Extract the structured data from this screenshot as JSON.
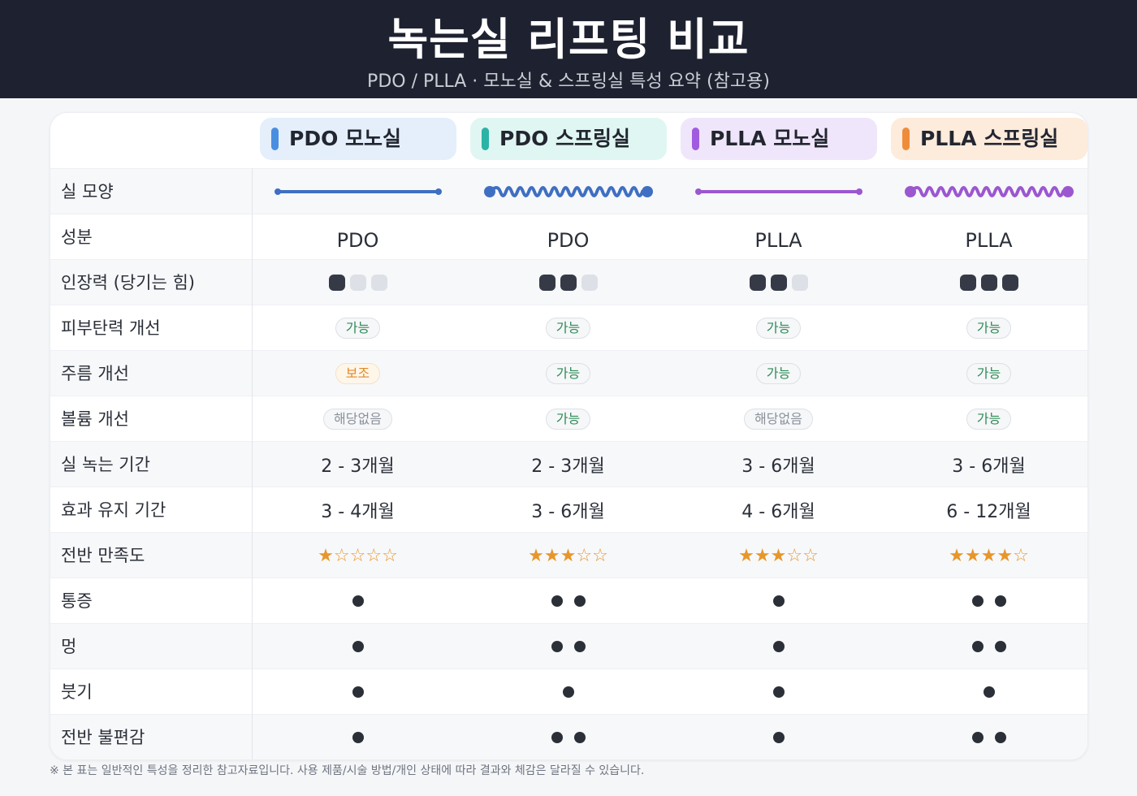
{
  "header": {
    "title": "녹는실 리프팅 비교",
    "subtitle": "PDO / PLLA · 모노실 & 스프링실 특성 요약 (참고용)"
  },
  "columns": [
    {
      "label": "PDO 모노실",
      "accent": "#4a8ee0",
      "bg": "#e4effb"
    },
    {
      "label": "PDO 스프링실",
      "accent": "#2bb3a6",
      "bg": "#e0f6f2"
    },
    {
      "label": "PLLA 모노실",
      "accent": "#a05be0",
      "bg": "#f0e6fb"
    },
    {
      "label": "PLLA 스프링실",
      "accent": "#ef8c3a",
      "bg": "#fdebdc"
    }
  ],
  "rows": {
    "shape": {
      "label": "실 모양",
      "colors": [
        "#3f6fc2",
        "#3f6fc2",
        "#9b57d0",
        "#9b57d0"
      ],
      "types": [
        "mono",
        "spring",
        "mono",
        "spring"
      ]
    },
    "ingredient": {
      "label": "성분",
      "values": [
        "PDO",
        "PDO",
        "PLLA",
        "PLLA"
      ]
    },
    "tension": {
      "label": "인장력 (당기는 힘)",
      "levels": [
        1,
        2,
        2,
        3
      ],
      "max": 3
    },
    "elasticity": {
      "label": "피부탄력 개선",
      "values": [
        "가능",
        "가능",
        "가능",
        "가능"
      ],
      "kinds": [
        "ok",
        "ok",
        "ok",
        "ok"
      ]
    },
    "wrinkle": {
      "label": "주름 개선",
      "values": [
        "보조",
        "가능",
        "가능",
        "가능"
      ],
      "kinds": [
        "sub",
        "ok",
        "ok",
        "ok"
      ]
    },
    "volume": {
      "label": "볼륨 개선",
      "values": [
        "해당없음",
        "가능",
        "해당없음",
        "가능"
      ],
      "kinds": [
        "none",
        "ok",
        "none",
        "ok"
      ]
    },
    "melt": {
      "label": "실 녹는 기간",
      "values": [
        "2 - 3개월",
        "2 - 3개월",
        "3 - 6개월",
        "3 - 6개월"
      ]
    },
    "duration": {
      "label": "효과 유지 기간",
      "values": [
        "3 - 4개월",
        "3 - 6개월",
        "4 - 6개월",
        "6 - 12개월"
      ]
    },
    "satisfaction": {
      "label": "전반 만족도",
      "ratings": [
        1,
        3,
        3,
        4
      ],
      "max": 5
    },
    "pain": {
      "label": "통증",
      "levels": [
        1,
        2,
        1,
        2
      ]
    },
    "bruise": {
      "label": "멍",
      "levels": [
        1,
        2,
        1,
        2
      ]
    },
    "swelling": {
      "label": "붓기",
      "levels": [
        1,
        1,
        1,
        1
      ]
    },
    "discomfort": {
      "label": "전반 불편감",
      "levels": [
        1,
        2,
        1,
        2
      ]
    }
  },
  "footnote": "※ 본 표는 일반적인 특성을 정리한 참고자료입니다. 사용 제품/시술 방법/개인 상태에 따라 결과와 체감은 달라질 수 있습니다."
}
